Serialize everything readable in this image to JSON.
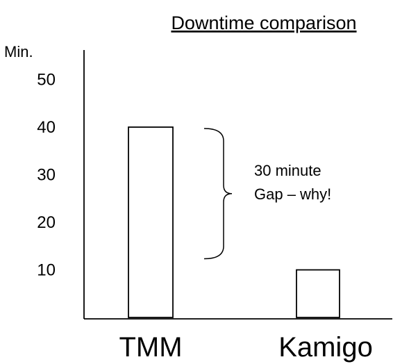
{
  "chart_data": {
    "type": "bar",
    "title": "Downtime comparison",
    "ylabel": "Min.",
    "xlabel": "",
    "categories": [
      "TMM",
      "Kamigo"
    ],
    "values": [
      40,
      10
    ],
    "ylim": [
      0,
      50
    ],
    "yticks": [
      10,
      20,
      30,
      40,
      50
    ],
    "grid": false,
    "legend": "none",
    "bar_fill": "#ffffff",
    "bar_stroke": "#000000",
    "annotation": {
      "lines": [
        "30 minute",
        "Gap – why!"
      ],
      "bracket_from": 40,
      "bracket_to": 10
    }
  }
}
